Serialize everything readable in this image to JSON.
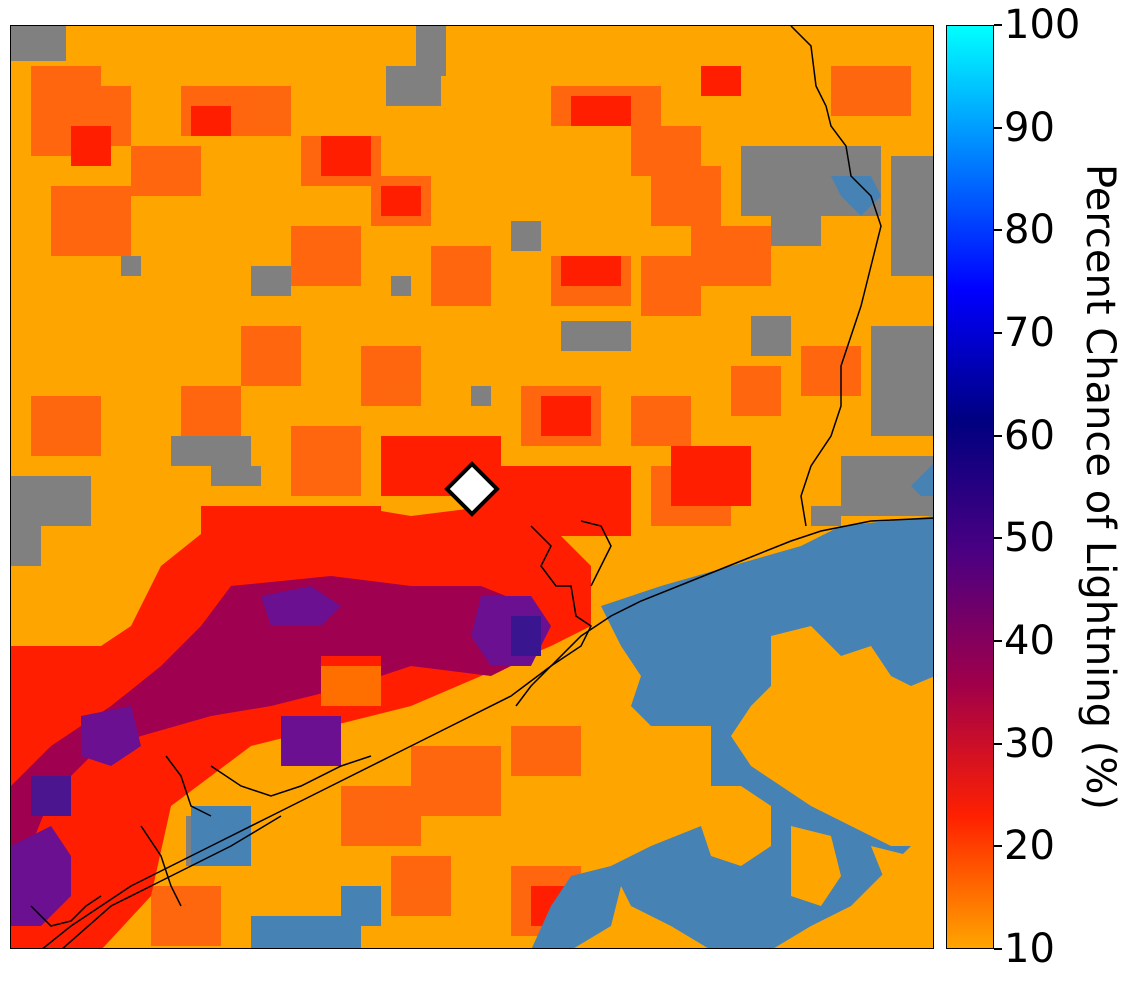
{
  "colorbar": {
    "label": "Percent Chance of Lightning (%)",
    "min": 10,
    "max": 100,
    "ticks": [
      "100",
      "90",
      "80",
      "70",
      "60",
      "50",
      "40",
      "30",
      "20",
      "10"
    ],
    "gradient": [
      "#FFA500",
      "#FF2000",
      "#A0004A",
      "#4B0082",
      "#000080",
      "#0000FF",
      "#0080FF",
      "#00FFFF"
    ]
  },
  "map": {
    "colors": {
      "background": "#FFA500",
      "no_data_land": "#808080",
      "water": "#4682B4",
      "coastline": "#000000",
      "marker_fill": "#FFFFFF",
      "marker_stroke": "#000000"
    },
    "marker": {
      "shape": "diamond-icon"
    }
  }
}
